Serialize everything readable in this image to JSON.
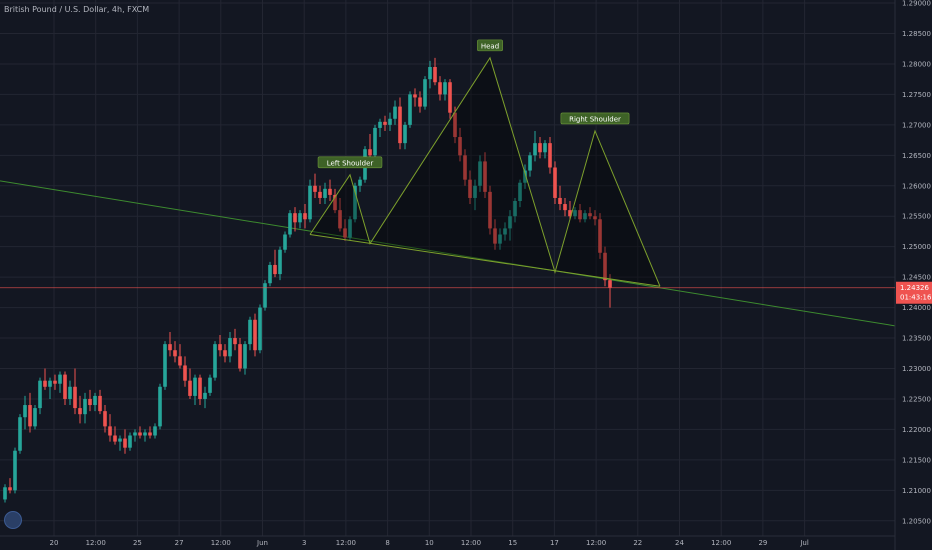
{
  "header": {
    "title": "British Pound / U.S. Dollar, 4h, FXCM"
  },
  "colors": {
    "background": "#131722",
    "grid": "#232632",
    "up": "#26a69a",
    "down": "#ef5350",
    "pattern_line": "#7da02c",
    "trend_line": "#3d8b2f",
    "label_bg": "#3e6227",
    "price_line": "#ef5350"
  },
  "chart_data": {
    "type": "candlestick",
    "title": "British Pound / U.S. Dollar, 4h, FXCM",
    "ylim": [
      1.2025,
      1.2905
    ],
    "y_ticks": [
      "1.29000",
      "1.28500",
      "1.28000",
      "1.27500",
      "1.27000",
      "1.26500",
      "1.26000",
      "1.25500",
      "1.25000",
      "1.24500",
      "1.24000",
      "1.23500",
      "1.23000",
      "1.22500",
      "1.22000",
      "1.21500",
      "1.21000",
      "1.20500"
    ],
    "x_tick_labels": [
      "20",
      "12:00",
      "25",
      "27",
      "12:00",
      "Jun",
      "3",
      "12:00",
      "8",
      "10",
      "12:00",
      "15",
      "17",
      "12:00",
      "22",
      "24",
      "12:00",
      "29",
      "Jul"
    ],
    "current_price": "1.24326",
    "countdown": "01:43:16",
    "annotations": [
      "Head",
      "Left Shoulder",
      "Right Shoulder"
    ],
    "candles_ohlc": [
      [
        1.2085,
        1.211,
        1.208,
        1.2105
      ],
      [
        1.2105,
        1.212,
        1.2095,
        1.21
      ],
      [
        1.21,
        1.217,
        1.2095,
        1.2165
      ],
      [
        1.2165,
        1.2225,
        1.216,
        1.222
      ],
      [
        1.222,
        1.2255,
        1.22,
        1.224
      ],
      [
        1.224,
        1.226,
        1.2195,
        1.2205
      ],
      [
        1.2205,
        1.224,
        1.22,
        1.2235
      ],
      [
        1.2235,
        1.2285,
        1.2225,
        1.228
      ],
      [
        1.228,
        1.23,
        1.2265,
        1.227
      ],
      [
        1.227,
        1.2285,
        1.225,
        1.228
      ],
      [
        1.228,
        1.229,
        1.2265,
        1.2275
      ],
      [
        1.2275,
        1.2295,
        1.226,
        1.229
      ],
      [
        1.229,
        1.2295,
        1.224,
        1.225
      ],
      [
        1.225,
        1.228,
        1.224,
        1.227
      ],
      [
        1.227,
        1.23,
        1.2225,
        1.2235
      ],
      [
        1.2235,
        1.2255,
        1.221,
        1.2225
      ],
      [
        1.2225,
        1.226,
        1.221,
        1.225
      ],
      [
        1.225,
        1.2265,
        1.223,
        1.224
      ],
      [
        1.224,
        1.226,
        1.223,
        1.2255
      ],
      [
        1.2255,
        1.2265,
        1.2225,
        1.223
      ],
      [
        1.223,
        1.224,
        1.2195,
        1.2205
      ],
      [
        1.2205,
        1.2225,
        1.218,
        1.219
      ],
      [
        1.219,
        1.2205,
        1.2175,
        1.218
      ],
      [
        1.218,
        1.219,
        1.2165,
        1.2185
      ],
      [
        1.2185,
        1.22,
        1.216,
        1.217
      ],
      [
        1.217,
        1.2195,
        1.2165,
        1.219
      ],
      [
        1.219,
        1.22,
        1.218,
        1.2195
      ],
      [
        1.2195,
        1.2205,
        1.2185,
        1.219
      ],
      [
        1.219,
        1.22,
        1.218,
        1.2195
      ],
      [
        1.2195,
        1.2205,
        1.2185,
        1.219
      ],
      [
        1.219,
        1.221,
        1.2185,
        1.2205
      ],
      [
        1.2205,
        1.2275,
        1.22,
        1.227
      ],
      [
        1.227,
        1.2345,
        1.2265,
        1.234
      ],
      [
        1.234,
        1.236,
        1.232,
        1.233
      ],
      [
        1.233,
        1.2345,
        1.231,
        1.232
      ],
      [
        1.232,
        1.234,
        1.23,
        1.2305
      ],
      [
        1.2305,
        1.232,
        1.227,
        1.228
      ],
      [
        1.228,
        1.23,
        1.225,
        1.2255
      ],
      [
        1.2255,
        1.229,
        1.224,
        1.2285
      ],
      [
        1.2285,
        1.229,
        1.224,
        1.225
      ],
      [
        1.225,
        1.227,
        1.2235,
        1.226
      ],
      [
        1.226,
        1.229,
        1.2255,
        1.2285
      ],
      [
        1.2285,
        1.2345,
        1.228,
        1.234
      ],
      [
        1.234,
        1.2355,
        1.232,
        1.233
      ],
      [
        1.233,
        1.234,
        1.231,
        1.232
      ],
      [
        1.232,
        1.236,
        1.231,
        1.235
      ],
      [
        1.235,
        1.2365,
        1.233,
        1.234
      ],
      [
        1.234,
        1.235,
        1.2295,
        1.23
      ],
      [
        1.23,
        1.2345,
        1.229,
        1.234
      ],
      [
        1.234,
        1.2385,
        1.233,
        1.238
      ],
      [
        1.238,
        1.239,
        1.232,
        1.233
      ],
      [
        1.233,
        1.2405,
        1.2325,
        1.24
      ],
      [
        1.24,
        1.2445,
        1.2395,
        1.244
      ],
      [
        1.244,
        1.2475,
        1.2435,
        1.247
      ],
      [
        1.247,
        1.2495,
        1.245,
        1.2455
      ],
      [
        1.2455,
        1.25,
        1.2445,
        1.2495
      ],
      [
        1.2495,
        1.2525,
        1.249,
        1.252
      ],
      [
        1.252,
        1.256,
        1.2515,
        1.2555
      ],
      [
        1.2555,
        1.2565,
        1.2525,
        1.254
      ],
      [
        1.254,
        1.256,
        1.253,
        1.2555
      ],
      [
        1.2555,
        1.257,
        1.253,
        1.2545
      ],
      [
        1.2545,
        1.261,
        1.254,
        1.26
      ],
      [
        1.26,
        1.262,
        1.258,
        1.259
      ],
      [
        1.259,
        1.26,
        1.257,
        1.258
      ],
      [
        1.258,
        1.2605,
        1.257,
        1.2595
      ],
      [
        1.2595,
        1.261,
        1.2575,
        1.2585
      ],
      [
        1.2585,
        1.2595,
        1.2555,
        1.256
      ],
      [
        1.256,
        1.258,
        1.2525,
        1.253
      ],
      [
        1.253,
        1.2545,
        1.251,
        1.2515
      ],
      [
        1.2515,
        1.255,
        1.251,
        1.2545
      ],
      [
        1.2545,
        1.2605,
        1.254,
        1.26
      ],
      [
        1.26,
        1.2615,
        1.259,
        1.261
      ],
      [
        1.261,
        1.2665,
        1.2605,
        1.266
      ],
      [
        1.266,
        1.2685,
        1.264,
        1.265
      ],
      [
        1.265,
        1.27,
        1.2645,
        1.2695
      ],
      [
        1.2695,
        1.271,
        1.268,
        1.2705
      ],
      [
        1.2705,
        1.2715,
        1.269,
        1.27
      ],
      [
        1.27,
        1.272,
        1.269,
        1.271
      ],
      [
        1.271,
        1.274,
        1.27,
        1.273
      ],
      [
        1.273,
        1.2745,
        1.266,
        1.267
      ],
      [
        1.267,
        1.2705,
        1.266,
        1.27
      ],
      [
        1.27,
        1.2755,
        1.2695,
        1.275
      ],
      [
        1.275,
        1.276,
        1.273,
        1.2745
      ],
      [
        1.2745,
        1.2755,
        1.272,
        1.273
      ],
      [
        1.273,
        1.278,
        1.2725,
        1.2775
      ],
      [
        1.2775,
        1.2805,
        1.276,
        1.2795
      ],
      [
        1.2795,
        1.281,
        1.2765,
        1.277
      ],
      [
        1.277,
        1.278,
        1.274,
        1.275
      ],
      [
        1.275,
        1.2775,
        1.274,
        1.277
      ],
      [
        1.277,
        1.2775,
        1.271,
        1.272
      ],
      [
        1.272,
        1.273,
        1.267,
        1.268
      ],
      [
        1.268,
        1.2695,
        1.264,
        1.265
      ],
      [
        1.265,
        1.266,
        1.26,
        1.261
      ],
      [
        1.261,
        1.2625,
        1.257,
        1.258
      ],
      [
        1.258,
        1.261,
        1.256,
        1.26
      ],
      [
        1.26,
        1.265,
        1.259,
        1.264
      ],
      [
        1.264,
        1.2655,
        1.258,
        1.259
      ],
      [
        1.259,
        1.26,
        1.252,
        1.253
      ],
      [
        1.253,
        1.2545,
        1.2495,
        1.2505
      ],
      [
        1.2505,
        1.253,
        1.2495,
        1.252
      ],
      [
        1.252,
        1.254,
        1.251,
        1.253
      ],
      [
        1.253,
        1.256,
        1.251,
        1.255
      ],
      [
        1.255,
        1.258,
        1.254,
        1.2575
      ],
      [
        1.2575,
        1.261,
        1.2565,
        1.2605
      ],
      [
        1.2605,
        1.2635,
        1.2595,
        1.2625
      ],
      [
        1.2625,
        1.2655,
        1.2615,
        1.265
      ],
      [
        1.265,
        1.269,
        1.264,
        1.267
      ],
      [
        1.267,
        1.268,
        1.2645,
        1.2655
      ],
      [
        1.2655,
        1.2675,
        1.2645,
        1.267
      ],
      [
        1.267,
        1.268,
        1.262,
        1.263
      ],
      [
        1.263,
        1.264,
        1.257,
        1.258
      ],
      [
        1.258,
        1.26,
        1.256,
        1.257
      ],
      [
        1.257,
        1.258,
        1.255,
        1.256
      ],
      [
        1.256,
        1.2575,
        1.2545,
        1.255
      ],
      [
        1.255,
        1.2565,
        1.2545,
        1.256
      ],
      [
        1.256,
        1.257,
        1.254,
        1.2545
      ],
      [
        1.2545,
        1.256,
        1.254,
        1.2555
      ],
      [
        1.2555,
        1.2565,
        1.2545,
        1.255
      ],
      [
        1.255,
        1.256,
        1.2535,
        1.2545
      ],
      [
        1.2545,
        1.2555,
        1.248,
        1.249
      ],
      [
        1.249,
        1.25,
        1.2435,
        1.2445
      ],
      [
        1.2445,
        1.2455,
        1.24,
        1.2433
      ]
    ]
  }
}
